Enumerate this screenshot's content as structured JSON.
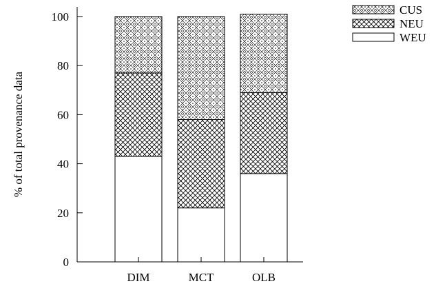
{
  "chart_data": {
    "type": "bar",
    "stacked": true,
    "categories": [
      "DIM",
      "MCT",
      "OLB"
    ],
    "series": [
      {
        "name": "WEU",
        "values": [
          43,
          22,
          36
        ],
        "pattern": "none"
      },
      {
        "name": "NEU",
        "values": [
          34,
          36,
          33
        ],
        "pattern": "crosshatch"
      },
      {
        "name": "CUS",
        "values": [
          23,
          42,
          32
        ],
        "pattern": "diamond-dots"
      }
    ],
    "ylabel": "% of total provenance data",
    "yticks": [
      0,
      20,
      40,
      60,
      80,
      100
    ],
    "ylim": [
      0,
      100
    ],
    "legend_position": "top-right",
    "legend_order": [
      "CUS",
      "NEU",
      "WEU"
    ],
    "grid": false,
    "colors": {
      "stroke": "#000000",
      "fill": "#ffffff"
    }
  }
}
